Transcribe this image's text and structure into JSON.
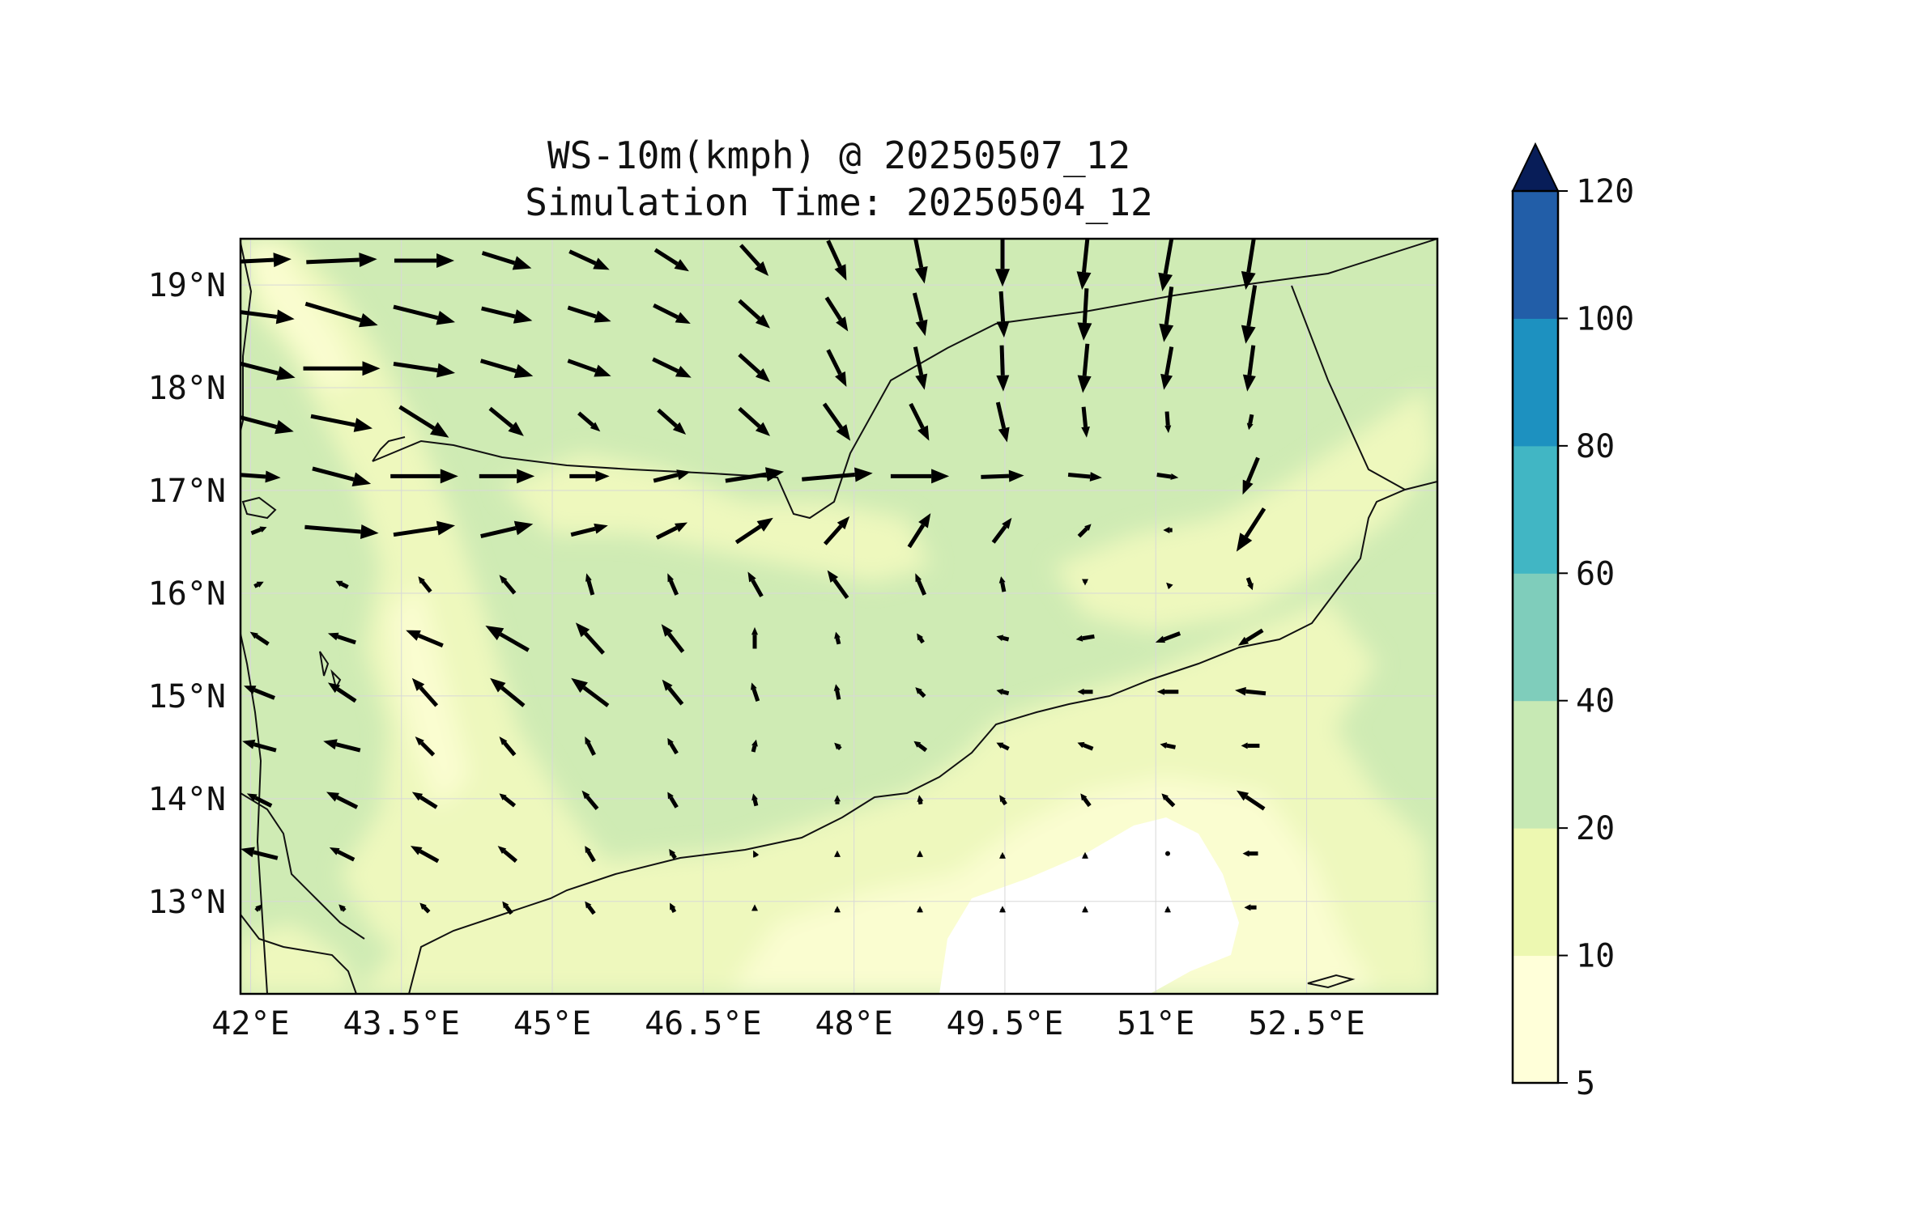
{
  "map": {
    "title_line1": "WS-10m(kmph) @ 20250507_12",
    "title_line2": "Simulation Time: 20250504_12",
    "lon_range": [
      41.9,
      53.8
    ],
    "lat_range": [
      12.1,
      19.45
    ],
    "lon_ticks": [
      {
        "value": 42.0,
        "label": "42°E"
      },
      {
        "value": 43.5,
        "label": "43.5°E"
      },
      {
        "value": 45.0,
        "label": "45°E"
      },
      {
        "value": 46.5,
        "label": "46.5°E"
      },
      {
        "value": 48.0,
        "label": "48°E"
      },
      {
        "value": 49.5,
        "label": "49.5°E"
      },
      {
        "value": 51.0,
        "label": "51°E"
      },
      {
        "value": 52.5,
        "label": "52.5°E"
      }
    ],
    "lat_ticks": [
      {
        "value": 19,
        "label": "19°N"
      },
      {
        "value": 18,
        "label": "18°N"
      },
      {
        "value": 17,
        "label": "17°N"
      },
      {
        "value": 16,
        "label": "16°N"
      },
      {
        "value": 15,
        "label": "15°N"
      },
      {
        "value": 14,
        "label": "14°N"
      },
      {
        "value": 13,
        "label": "13°N"
      }
    ]
  },
  "colorbar": {
    "levels": [
      5,
      10,
      20,
      40,
      60,
      80,
      100,
      120
    ],
    "labels": [
      "5",
      "10",
      "20",
      "40",
      "60",
      "80",
      "100",
      "120"
    ],
    "colors": [
      "#ffffd9",
      "#edf8b1",
      "#c7e9b4",
      "#7fcdbb",
      "#41b6c4",
      "#1d91c0",
      "#225ea8",
      "#253494"
    ],
    "extend_color": "#081d58",
    "extend": "max"
  },
  "field_colors": {
    "below_5": "#ffffff",
    "5_10": "#fafdd0",
    "10_20": "#eef8bd",
    "20_40": "#cfebb4"
  },
  "chart_data": {
    "type": "quiver",
    "units": "kmph",
    "u": [
      [
        42.0,
        46.0,
        39.0,
        32.0,
        26.0,
        22.0,
        18.0,
        12.0,
        6.0,
        0.0,
        -4.0,
        -7.0,
        -6.0
      ],
      [
        46.0,
        47.0,
        40.0,
        33.0,
        28.0,
        24.0,
        20.0,
        14.0,
        7.0,
        2.0,
        -2.0,
        -5.0,
        -6.0
      ],
      [
        47.0,
        50.0,
        40.0,
        34.0,
        28.0,
        25.0,
        20.0,
        12.0,
        6.0,
        1.0,
        -3.0,
        -5.0,
        -4.0
      ],
      [
        45.0,
        40.0,
        32.0,
        22.0,
        14.0,
        18.0,
        20.0,
        17.0,
        12.0,
        6.0,
        2.0,
        1.0,
        -2.0
      ],
      [
        28.0,
        38.0,
        44.0,
        36.0,
        26.0,
        24.0,
        38.0,
        46.0,
        38.0,
        28.0,
        22.0,
        14.0,
        -10.0
      ],
      [
        10.0,
        48.0,
        40.0,
        34.0,
        24.0,
        20.0,
        24.0,
        16.0,
        14.0,
        12.0,
        8.0,
        -6.0,
        -18.0
      ],
      [
        6.0,
        -8.0,
        -8.0,
        -10.0,
        -4.0,
        -6.0,
        -9.0,
        -13.0,
        -6.0,
        -2.0,
        0.0,
        -2.0,
        3.0
      ],
      [
        -12.0,
        -18.0,
        -24.0,
        -28.0,
        -18.0,
        -14.0,
        0.0,
        -2.0,
        -4.0,
        -8.0,
        -12.0,
        -16.0,
        -16.0
      ],
      [
        -20.0,
        -18.0,
        -16.0,
        -22.0,
        -24.0,
        -13.0,
        -4.0,
        -2.0,
        -6.0,
        -8.0,
        -10.0,
        -14.0,
        -20.0
      ],
      [
        -22.0,
        -24.0,
        -12.0,
        -10.0,
        -6.0,
        -6.0,
        2.0,
        -4.0,
        -8.0,
        -8.0,
        -10.0,
        -10.0,
        -12.0
      ],
      [
        -16.0,
        -20.0,
        -16.0,
        -10.0,
        -10.0,
        -6.0,
        -2.0,
        0.0,
        -1.0,
        -4.0,
        -6.0,
        -8.0,
        -18.0
      ],
      [
        -24.0,
        -16.0,
        -18.0,
        -12.0,
        -6.0,
        -4.0,
        -2.0,
        0.0,
        0.0,
        0.0,
        0.0,
        0.0,
        -10.0
      ],
      [
        4.0,
        -4.0,
        -6.0,
        -6.0,
        -6.0,
        -3.0,
        0.0,
        0.0,
        0.0,
        0.0,
        0.0,
        0.0,
        -8.0
      ]
    ],
    "v": [
      [
        2.0,
        2.0,
        0.0,
        -10.0,
        -12.0,
        -14.0,
        -20.0,
        -26.0,
        -30.0,
        -34.0,
        -38.0,
        -40.0,
        -38.0
      ],
      [
        -6.0,
        -14.0,
        -10.0,
        -8.0,
        -9.0,
        -12.0,
        -18.0,
        -22.0,
        -28.0,
        -30.0,
        -34.0,
        -36.0,
        -38.0
      ],
      [
        -12.0,
        0.0,
        -6.0,
        -10.0,
        -10.0,
        -12.0,
        -18.0,
        -24.0,
        -28.0,
        -30.0,
        -32.0,
        -28.0,
        -30.0
      ],
      [
        -12.0,
        -8.0,
        -20.0,
        -18.0,
        -12.0,
        -16.0,
        -18.0,
        -24.0,
        -24.0,
        -26.0,
        -20.0,
        -14.0,
        -10.0
      ],
      [
        -2.0,
        -10.0,
        0.0,
        0.0,
        0.0,
        6.0,
        6.0,
        4.0,
        0.0,
        1.0,
        -2.0,
        -2.0,
        -24.0
      ],
      [
        4.0,
        -4.0,
        6.0,
        8.0,
        6.0,
        10.0,
        16.0,
        18.0,
        22.0,
        16.0,
        8.0,
        0.0,
        -28.0
      ],
      [
        3.0,
        4.0,
        10.0,
        12.0,
        14.0,
        14.0,
        16.0,
        18.0,
        14.0,
        10.0,
        -2.0,
        2.0,
        -8.0
      ],
      [
        8.0,
        6.0,
        10.0,
        16.0,
        20.0,
        18.0,
        14.0,
        8.0,
        6.0,
        2.0,
        -2.0,
        -6.0,
        -10.0
      ],
      [
        8.0,
        12.0,
        18.0,
        18.0,
        18.0,
        16.0,
        12.0,
        10.0,
        6.0,
        2.0,
        0.0,
        0.0,
        2.0
      ],
      [
        6.0,
        6.0,
        12.0,
        12.0,
        12.0,
        10.0,
        8.0,
        4.0,
        6.0,
        4.0,
        4.0,
        2.0,
        0.0
      ],
      [
        8.0,
        10.0,
        10.0,
        8.0,
        12.0,
        10.0,
        8.0,
        6.0,
        6.0,
        6.0,
        8.0,
        8.0,
        12.0
      ],
      [
        6.0,
        8.0,
        10.0,
        10.0,
        10.0,
        6.0,
        4.0,
        4.0,
        4.0,
        2.0,
        2.0,
        0.0,
        0.0
      ],
      [
        4.0,
        4.0,
        6.0,
        8.0,
        8.0,
        6.0,
        4.0,
        2.0,
        2.0,
        2.0,
        2.0,
        2.0,
        0.0
      ]
    ]
  }
}
